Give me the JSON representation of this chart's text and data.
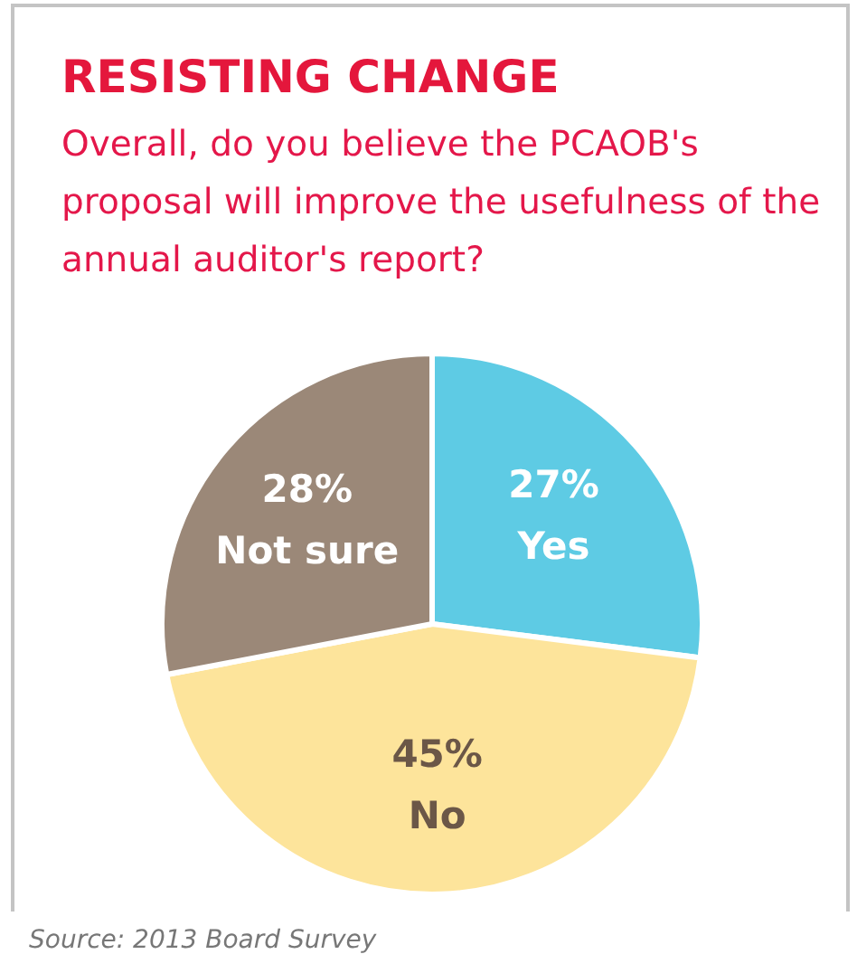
{
  "chart_data": {
    "type": "pie",
    "title": "RESISTING CHANGE",
    "subtitle": "Overall, do you believe the PCAOB's proposal will improve the usefulness of the annual auditor's report?",
    "categories": [
      "Yes",
      "No",
      "Not sure"
    ],
    "values": [
      27,
      45,
      28
    ],
    "value_labels": [
      "27%",
      "45%",
      "28%"
    ],
    "colors": [
      "#5ecbe4",
      "#fde49b",
      "#9b8878"
    ],
    "legend": false,
    "annotations": [
      "Source: 2013 Board Survey"
    ]
  }
}
